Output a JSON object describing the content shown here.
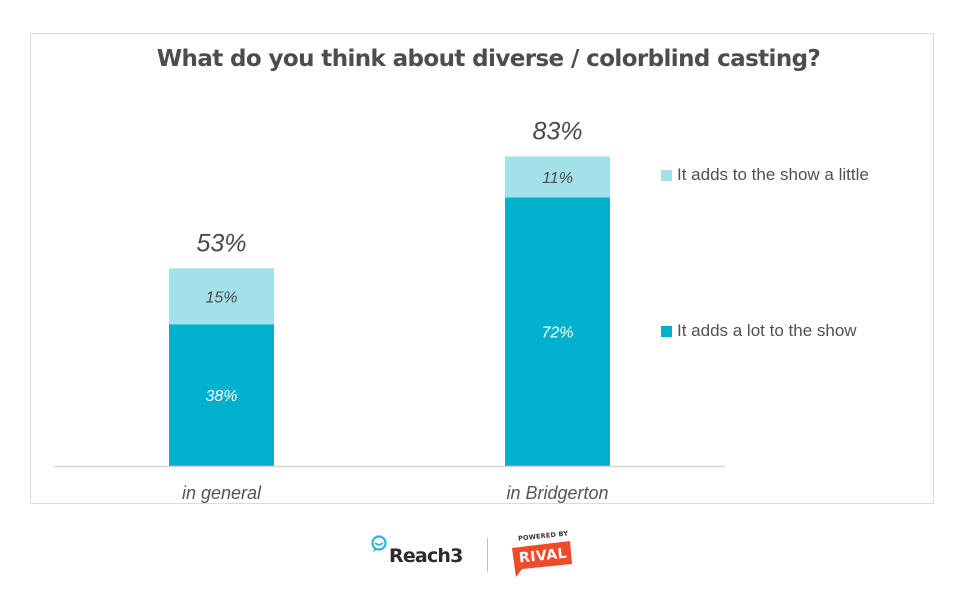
{
  "chart_data": {
    "type": "bar",
    "stacked": true,
    "title": "What do you think about diverse / colorblind casting?",
    "xlabel": "",
    "ylabel": "",
    "ylim": [
      0,
      100
    ],
    "grid": false,
    "categories": [
      "in general",
      "in Bridgerton"
    ],
    "series": [
      {
        "name": "It adds a lot to the show",
        "values": [
          38,
          72
        ],
        "labels": [
          "38%",
          "72%"
        ],
        "color": "#00b0cc"
      },
      {
        "name": "It adds to the show a little",
        "values": [
          15,
          11
        ],
        "labels": [
          "15%",
          "11%"
        ],
        "color": "#a3e1ea"
      }
    ],
    "totals": [
      53,
      83
    ],
    "total_labels": [
      "53%",
      "83%"
    ],
    "legend_position": "right",
    "legend_order": [
      "It adds to the show a little",
      "It adds a lot to the show"
    ]
  },
  "colors": {
    "dark_bar": "#00b0cc",
    "light_bar": "#a3e1ea",
    "title_text": "#4d4d4d",
    "axis_line": "#d6d6d6",
    "reach3_accent": "#2fb5c9",
    "rival_red": "#ee4b2b"
  },
  "footer": {
    "reach3_logo": "Reach3",
    "reach3_icon": "chat-bubble-smile-icon",
    "rival_powered_by": "POWERED BY",
    "rival_logo": "RIVAL"
  }
}
